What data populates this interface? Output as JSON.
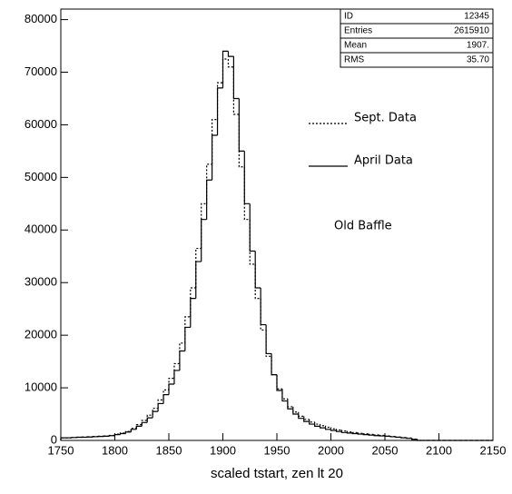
{
  "chart_data": {
    "type": "histogram",
    "xlabel": "scaled tstart, zen lt 20",
    "bins": [
      1750,
      1755,
      1760,
      1765,
      1770,
      1775,
      1780,
      1785,
      1790,
      1795,
      1800,
      1805,
      1810,
      1815,
      1820,
      1825,
      1830,
      1835,
      1840,
      1845,
      1850,
      1855,
      1860,
      1865,
      1870,
      1875,
      1880,
      1885,
      1890,
      1895,
      1900,
      1905,
      1910,
      1915,
      1920,
      1925,
      1930,
      1935,
      1940,
      1945,
      1950,
      1955,
      1960,
      1965,
      1970,
      1975,
      1980,
      1985,
      1990,
      1995,
      2000,
      2005,
      2010,
      2015,
      2020,
      2025,
      2030,
      2035,
      2040,
      2045,
      2050,
      2055,
      2060,
      2065,
      2070,
      2075,
      2080,
      2085,
      2090,
      2095,
      2100,
      2105,
      2110,
      2115,
      2120,
      2125,
      2130,
      2135,
      2140,
      2145,
      2150
    ],
    "series": [
      {
        "name": "Sept. Data",
        "color": "#000000",
        "dash": true,
        "values": [
          500,
          500,
          550,
          600,
          650,
          700,
          750,
          800,
          850,
          950,
          1200,
          1400,
          1700,
          2300,
          3000,
          3800,
          4800,
          6100,
          7700,
          9600,
          11800,
          14600,
          18500,
          23500,
          29000,
          36500,
          45000,
          52500,
          61000,
          68000,
          72500,
          71000,
          62000,
          52000,
          42000,
          33500,
          27000,
          21000,
          16000,
          12500,
          9800,
          7900,
          6400,
          5400,
          4600,
          4000,
          3500,
          3100,
          2800,
          2500,
          2200,
          2000,
          1800,
          1600,
          1500,
          1350,
          1250,
          1150,
          1050,
          950,
          850,
          750,
          650,
          550,
          450,
          250,
          0,
          0,
          0,
          0,
          0,
          0,
          0,
          0,
          0,
          0,
          0,
          0,
          0,
          0
        ]
      },
      {
        "name": "April Data",
        "color": "#000000",
        "dash": false,
        "values": [
          500,
          500,
          550,
          600,
          600,
          650,
          700,
          750,
          800,
          900,
          1100,
          1300,
          1600,
          2100,
          2700,
          3400,
          4300,
          5500,
          7000,
          8700,
          10700,
          13300,
          17000,
          21500,
          27000,
          34000,
          42000,
          49500,
          58000,
          67000,
          74000,
          73000,
          65000,
          55000,
          45000,
          36000,
          29000,
          22000,
          16500,
          12500,
          9500,
          7500,
          6000,
          5000,
          4200,
          3600,
          3100,
          2700,
          2400,
          2100,
          1900,
          1700,
          1500,
          1400,
          1300,
          1200,
          1100,
          1000,
          900,
          850,
          800,
          700,
          600,
          500,
          400,
          200,
          0,
          0,
          0,
          0,
          0,
          0,
          0,
          0,
          0,
          0,
          0,
          0,
          0,
          0
        ]
      }
    ],
    "annotation": "Old Baffle",
    "stats": [
      [
        "ID",
        "12345"
      ],
      [
        "Entries",
        "2615910"
      ],
      [
        "Mean",
        "1907."
      ],
      [
        "RMS",
        "35.70"
      ]
    ],
    "xlim": [
      1750,
      2150
    ],
    "ylim": [
      0,
      82000
    ],
    "xticks": [
      1750,
      1800,
      1850,
      1900,
      1950,
      2000,
      2050,
      2100,
      2150
    ],
    "yticks": [
      0,
      10000,
      20000,
      30000,
      40000,
      50000,
      60000,
      70000,
      80000
    ]
  }
}
